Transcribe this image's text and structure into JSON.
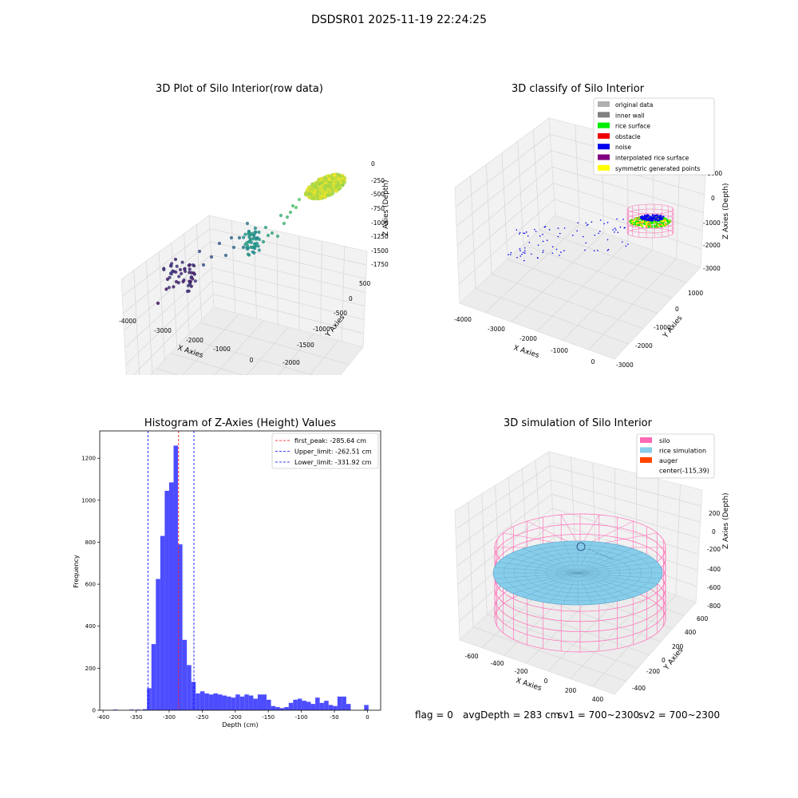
{
  "suptitle": "DSDSR01 2025-11-19 22:24:25",
  "panel1": {
    "title": "3D Plot of Silo Interior(row data)",
    "xlabel": "X Axies",
    "ylabel": "Y Axies",
    "zlabel": "Z Axies (Depth)",
    "xticks": [
      "-4000",
      "-3000",
      "-2000",
      "-1000",
      "0"
    ],
    "yticks": [
      "500",
      "0",
      "-500",
      "-1000",
      "-1500",
      "-2000"
    ],
    "zticks": [
      "0",
      "-250",
      "-500",
      "-750",
      "-1000",
      "-1250",
      "-1500",
      "-1750"
    ]
  },
  "panel2": {
    "title": "3D classify of Silo Interior",
    "xlabel": "X Axies",
    "ylabel": "Y Axies",
    "zlabel": "Z Axies (Depth)",
    "xticks": [
      "-4000",
      "-3000",
      "-2000",
      "-1000",
      "0"
    ],
    "yticks": [
      "1000",
      "0",
      "-1000",
      "-2000",
      "-3000"
    ],
    "zticks": [
      "1000",
      "0",
      "-1000",
      "-2000",
      "-3000"
    ],
    "legend": [
      {
        "label": "original data",
        "color": "#b0b0b0"
      },
      {
        "label": "inner wall",
        "color": "#808080"
      },
      {
        "label": "rice surface",
        "color": "#00ee00"
      },
      {
        "label": "obstacle",
        "color": "#ee0000"
      },
      {
        "label": "noise",
        "color": "#0000ee"
      },
      {
        "label": "interpolated rice surface",
        "color": "#800080"
      },
      {
        "label": "symmetric generated points",
        "color": "#ffff00"
      }
    ]
  },
  "panel4": {
    "title": "3D simulation of Silo Interior",
    "xlabel": "X Axies",
    "ylabel": "Y Axies",
    "zlabel": "Z Axies (Depth)",
    "xticks": [
      "-600",
      "-400",
      "-200",
      "0",
      "200",
      "400"
    ],
    "yticks": [
      "600",
      "400",
      "200",
      "0",
      "-200",
      "-400"
    ],
    "zticks": [
      "200",
      "0",
      "-200",
      "-400",
      "-600",
      "-800"
    ],
    "legend": [
      {
        "label": "silo",
        "color": "#ff69b4"
      },
      {
        "label": "rice simulation",
        "color": "#87ceeb"
      },
      {
        "label": "auger",
        "color": "#ff4500"
      },
      {
        "label": "center(-115,39)",
        "color": ""
      }
    ]
  },
  "status": {
    "flag": "flag = 0",
    "avg": "avgDepth = 283 cm",
    "sv1": "sv1 = 700~2300",
    "sv2": "sv2 = 700~2300"
  },
  "chart_data": [
    {
      "type": "scatter",
      "title": "3D Plot of Silo Interior(row data)",
      "xlabel": "X Axies",
      "ylabel": "Y Axies",
      "zlabel": "Z Axies (Depth)",
      "xlim": [
        -4200,
        200
      ],
      "ylim": [
        -2000,
        700
      ],
      "zlim": [
        -1900,
        100
      ]
    },
    {
      "type": "scatter",
      "title": "3D classify of Silo Interior",
      "xlabel": "X Axies",
      "ylabel": "Y Axies",
      "zlabel": "Z Axies (Depth)",
      "xlim": [
        -4200,
        200
      ],
      "ylim": [
        -3000,
        1500
      ],
      "zlim": [
        -3200,
        1200
      ]
    },
    {
      "type": "bar",
      "title": "Histogram of Z-Axies (Height) Values",
      "xlabel": "Depth (cm)",
      "ylabel": "Frequency",
      "xlim": [
        -405,
        20
      ],
      "ylim": [
        0,
        1330
      ],
      "xticks": [
        -400,
        -350,
        -300,
        -250,
        -200,
        -150,
        -100,
        -50,
        0
      ],
      "yticks": [
        0,
        200,
        400,
        600,
        800,
        1000,
        1200
      ],
      "bin_width": 6.7,
      "bins": [
        {
          "x0": -385,
          "v": 3
        },
        {
          "x0": -360,
          "v": 3
        },
        {
          "x0": -350,
          "v": 3
        },
        {
          "x0": -340,
          "v": 5
        },
        {
          "x0": -333.5,
          "v": 105
        },
        {
          "x0": -326.8,
          "v": 315
        },
        {
          "x0": -320.1,
          "v": 625
        },
        {
          "x0": -313.4,
          "v": 830
        },
        {
          "x0": -306.7,
          "v": 1045
        },
        {
          "x0": -300,
          "v": 1085
        },
        {
          "x0": -293.3,
          "v": 1260
        },
        {
          "x0": -286.6,
          "v": 790
        },
        {
          "x0": -279.9,
          "v": 335
        },
        {
          "x0": -273.2,
          "v": 215
        },
        {
          "x0": -266.5,
          "v": 135
        },
        {
          "x0": -259.8,
          "v": 80
        },
        {
          "x0": -253.1,
          "v": 90
        },
        {
          "x0": -246.4,
          "v": 80
        },
        {
          "x0": -239.7,
          "v": 75
        },
        {
          "x0": -233,
          "v": 80
        },
        {
          "x0": -226.3,
          "v": 75
        },
        {
          "x0": -219.6,
          "v": 70
        },
        {
          "x0": -212.9,
          "v": 65
        },
        {
          "x0": -206.2,
          "v": 60
        },
        {
          "x0": -199.5,
          "v": 75
        },
        {
          "x0": -192.8,
          "v": 65
        },
        {
          "x0": -186.1,
          "v": 75
        },
        {
          "x0": -179.4,
          "v": 70
        },
        {
          "x0": -172.7,
          "v": 55
        },
        {
          "x0": -166,
          "v": 75
        },
        {
          "x0": -159.3,
          "v": 75
        },
        {
          "x0": -152.6,
          "v": 50
        },
        {
          "x0": -145.9,
          "v": 20
        },
        {
          "x0": -139.2,
          "v": 15
        },
        {
          "x0": -132.5,
          "v": 10
        },
        {
          "x0": -125.8,
          "v": 15
        },
        {
          "x0": -119.1,
          "v": 35
        },
        {
          "x0": -112.4,
          "v": 50
        },
        {
          "x0": -105.7,
          "v": 55
        },
        {
          "x0": -99,
          "v": 45
        },
        {
          "x0": -92.3,
          "v": 40
        },
        {
          "x0": -85.6,
          "v": 30
        },
        {
          "x0": -78.9,
          "v": 60
        },
        {
          "x0": -72.2,
          "v": 35
        },
        {
          "x0": -65.5,
          "v": 45
        },
        {
          "x0": -58.8,
          "v": 25
        },
        {
          "x0": -52.1,
          "v": 20
        },
        {
          "x0": -45.4,
          "v": 65
        },
        {
          "x0": -38.7,
          "v": 65
        },
        {
          "x0": -32,
          "v": 30
        },
        {
          "x0": -5,
          "v": 25
        }
      ],
      "vlines": [
        {
          "label": "first_peak: -285.64 cm",
          "x": -285.64,
          "color": "#ff0000"
        },
        {
          "label": "Upper_limit: -262.51 cm",
          "x": -262.51,
          "color": "#0000ff"
        },
        {
          "label": "Lower_limit: -331.92 cm",
          "x": -331.92,
          "color": "#0000ff"
        }
      ],
      "bar_color": "#4d4dff"
    },
    {
      "type": "scatter",
      "title": "3D simulation of Silo Interior",
      "xlabel": "X Axies",
      "ylabel": "Y Axies",
      "zlabel": "Z Axies (Depth)",
      "xlim": [
        -700,
        500
      ],
      "ylim": [
        -500,
        650
      ],
      "zlim": [
        -850,
        350
      ]
    }
  ]
}
